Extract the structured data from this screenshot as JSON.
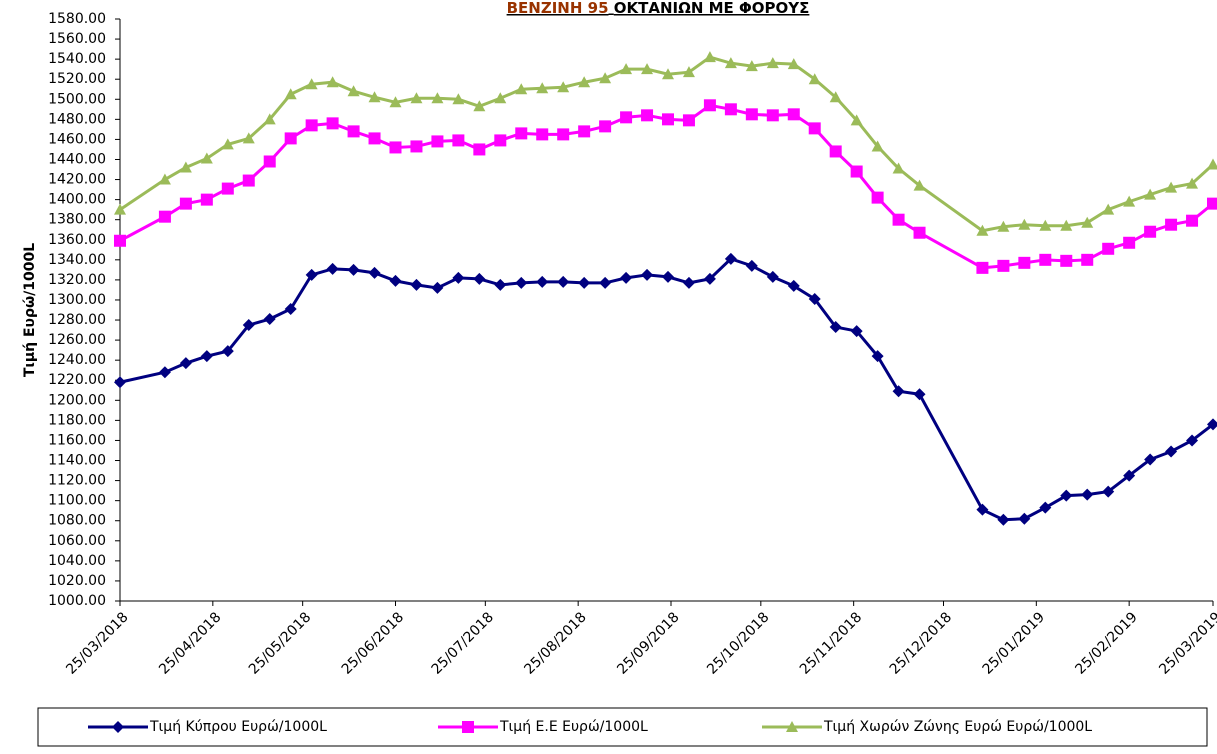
{
  "chart_data": {
    "type": "line",
    "title": [
      "ΒΕΝΖΙΝΗ 95",
      "ΟΚΤΑΝΙΩΝ ΜΕ ΦΟΡΟΥΣ"
    ],
    "title_colors": [
      "#993300",
      "#000000"
    ],
    "ylabel": "Τιμή Ευρώ/1000L",
    "x": [
      "25/03/2018",
      "09/04/2018",
      "16/04/2018",
      "23/04/2018",
      "30/04/2018",
      "07/05/2018",
      "14/05/2018",
      "21/05/2018",
      "28/05/2018",
      "04/06/2018",
      "11/06/2018",
      "18/06/2018",
      "25/06/2018",
      "02/07/2018",
      "09/07/2018",
      "16/07/2018",
      "23/07/2018",
      "30/07/2018",
      "06/08/2018",
      "13/08/2018",
      "20/08/2018",
      "27/08/2018",
      "03/09/2018",
      "10/09/2018",
      "17/09/2018",
      "24/09/2018",
      "01/10/2018",
      "08/10/2018",
      "15/10/2018",
      "22/10/2018",
      "29/10/2018",
      "05/11/2018",
      "12/11/2018",
      "19/11/2018",
      "26/11/2018",
      "03/12/2018",
      "10/12/2018",
      "17/12/2018",
      "07/01/2019",
      "14/01/2019",
      "21/01/2019",
      "28/01/2019",
      "04/02/2019",
      "11/02/2019",
      "18/02/2019",
      "25/02/2019",
      "04/03/2019",
      "11/03/2019",
      "18/03/2019",
      "25/03/2019"
    ],
    "series": [
      {
        "name": "Τιμή Κύπρου Ευρώ/1000L",
        "color": "#000080",
        "marker": "diamond",
        "values": [
          1218,
          1228,
          1237,
          1244,
          1249,
          1275,
          1281,
          1291,
          1325,
          1331,
          1330,
          1327,
          1319,
          1315,
          1312,
          1322,
          1321,
          1315,
          1317,
          1318,
          1318,
          1317,
          1317,
          1322,
          1325,
          1323,
          1317,
          1321,
          1341,
          1334,
          1323,
          1314,
          1301,
          1273,
          1269,
          1244,
          1209,
          1206,
          1091,
          1081,
          1082,
          1093,
          1105,
          1106,
          1109,
          1125,
          1141,
          1149,
          1160,
          1176
        ]
      },
      {
        "name": "Τιμή Ε.Ε Ευρώ/1000L",
        "color": "#ff00ff",
        "marker": "square",
        "values": [
          1359,
          1383,
          1396,
          1400,
          1411,
          1419,
          1438,
          1461,
          1474,
          1476,
          1468,
          1461,
          1452,
          1453,
          1458,
          1459,
          1450,
          1459,
          1466,
          1465,
          1465,
          1468,
          1473,
          1482,
          1484,
          1480,
          1479,
          1494,
          1490,
          1485,
          1484,
          1485,
          1471,
          1448,
          1428,
          1402,
          1380,
          1367,
          1332,
          1334,
          1337,
          1340,
          1339,
          1340,
          1351,
          1357,
          1368,
          1375,
          1379,
          1396
        ]
      },
      {
        "name": "Τιμή Χωρών Ζώνης Ευρώ Ευρώ/1000L",
        "color": "#9bbb59",
        "marker": "triangle",
        "values": [
          1390,
          1420,
          1432,
          1441,
          1455,
          1461,
          1480,
          1505,
          1515,
          1517,
          1508,
          1502,
          1497,
          1501,
          1501,
          1500,
          1493,
          1501,
          1510,
          1511,
          1512,
          1517,
          1521,
          1530,
          1530,
          1525,
          1527,
          1542,
          1536,
          1533,
          1536,
          1535,
          1520,
          1502,
          1479,
          1453,
          1431,
          1414,
          1369,
          1373,
          1375,
          1374,
          1374,
          1377,
          1390,
          1398,
          1405,
          1412,
          1416,
          1435
        ]
      }
    ],
    "xlim": [
      "25/03/2018",
      "25/03/2019"
    ],
    "xticks": [
      "25/03/2018",
      "25/04/2018",
      "25/05/2018",
      "25/06/2018",
      "25/07/2018",
      "25/08/2018",
      "25/09/2018",
      "25/10/2018",
      "25/11/2018",
      "25/12/2018",
      "25/01/2019",
      "25/02/2019",
      "25/03/2019"
    ],
    "ylim": [
      1000,
      1580
    ],
    "yticks": [
      {
        "value": 1000,
        "label": "1000.00"
      },
      {
        "value": 1020,
        "label": "1020.00"
      },
      {
        "value": 1040,
        "label": "1040.00"
      },
      {
        "value": 1060,
        "label": "1060.00"
      },
      {
        "value": 1080,
        "label": "1080.00"
      },
      {
        "value": 1100,
        "label": "1100.00"
      },
      {
        "value": 1120,
        "label": "1120.00"
      },
      {
        "value": 1140,
        "label": "1140.00"
      },
      {
        "value": 1160,
        "label": "1160.00"
      },
      {
        "value": 1180,
        "label": "1180.00"
      },
      {
        "value": 1200,
        "label": "1200.00"
      },
      {
        "value": 1220,
        "label": "1220.00"
      },
      {
        "value": 1240,
        "label": "1240.00"
      },
      {
        "value": 1260,
        "label": "1260.00"
      },
      {
        "value": 1280,
        "label": "1280.00"
      },
      {
        "value": 1300,
        "label": "1300.00"
      },
      {
        "value": 1320,
        "label": "1320.00"
      },
      {
        "value": 1340,
        "label": "1340.00"
      },
      {
        "value": 1360,
        "label": "1360.00"
      },
      {
        "value": 1380,
        "label": "1380.00"
      },
      {
        "value": 1400,
        "label": "1400.00"
      },
      {
        "value": 1420,
        "label": "1420.00"
      },
      {
        "value": 1440,
        "label": "1440.00"
      },
      {
        "value": 1460,
        "label": "1460.00"
      },
      {
        "value": 1480,
        "label": "1480.00"
      },
      {
        "value": 1500,
        "label": "1500.00"
      },
      {
        "value": 1520,
        "label": "1520.00"
      },
      {
        "value": 1540,
        "label": "1540.00"
      },
      {
        "value": 1560,
        "label": "1560.00"
      },
      {
        "value": 1580,
        "label": "1580.00"
      }
    ],
    "grid": false,
    "legend": "bottom"
  }
}
